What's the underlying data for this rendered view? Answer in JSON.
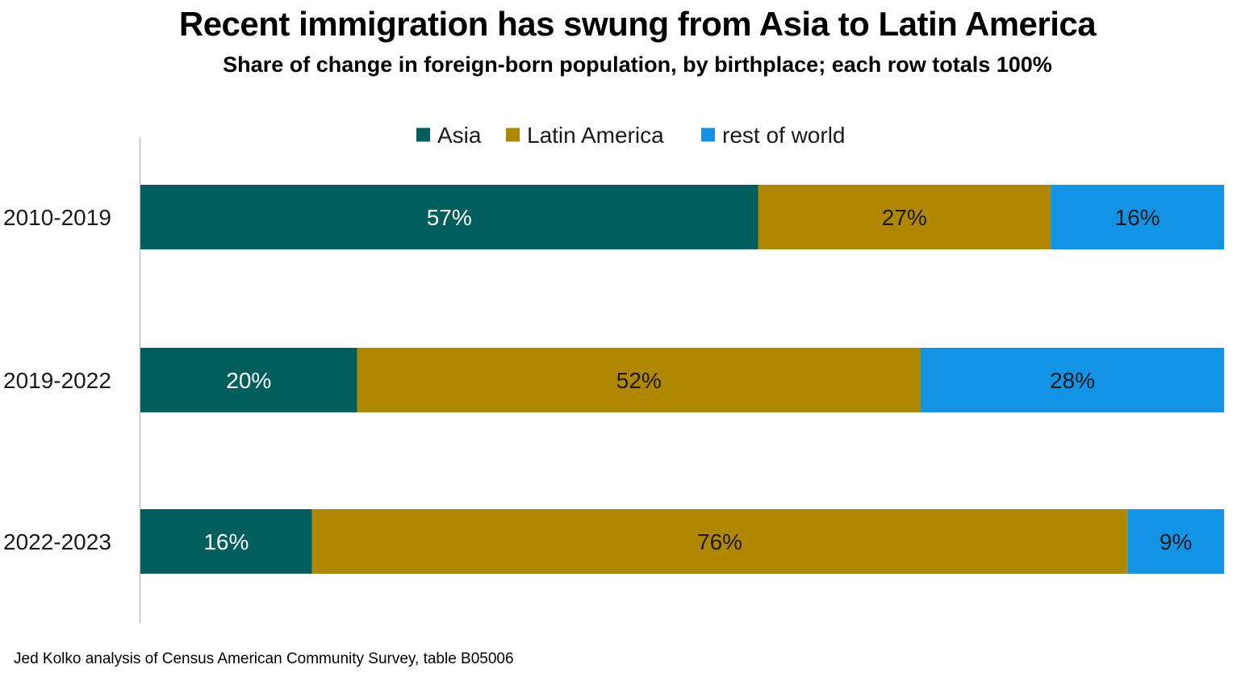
{
  "chart_data": {
    "type": "bar",
    "orientation": "horizontal",
    "stacked": true,
    "title": "Recent immigration has swung from Asia to Latin America",
    "subtitle": "Share of change in foreign-born population, by birthplace; each row totals 100%",
    "categories": [
      "2010-2019",
      "2019-2022",
      "2022-2023"
    ],
    "series": [
      {
        "name": "Asia",
        "color": "#005e5d",
        "label_color": "#ffffff",
        "values": [
          57,
          20,
          16
        ]
      },
      {
        "name": "Latin America",
        "color": "#b08700",
        "label_color": "#1a1a1a",
        "values": [
          27,
          52,
          76
        ]
      },
      {
        "name": "rest of world",
        "color": "#1393e6",
        "label_color": "#1a1a1a",
        "values": [
          16,
          28,
          9
        ]
      }
    ],
    "value_labels": [
      [
        "57%",
        "27%",
        "16%"
      ],
      [
        "20%",
        "52%",
        "28%"
      ],
      [
        "16%",
        "76%",
        "9%"
      ]
    ],
    "legend_position": "top-center",
    "grid": false,
    "xlim": [
      0,
      100
    ],
    "source": "Jed Kolko analysis of Census American Community Survey, table B05006"
  }
}
